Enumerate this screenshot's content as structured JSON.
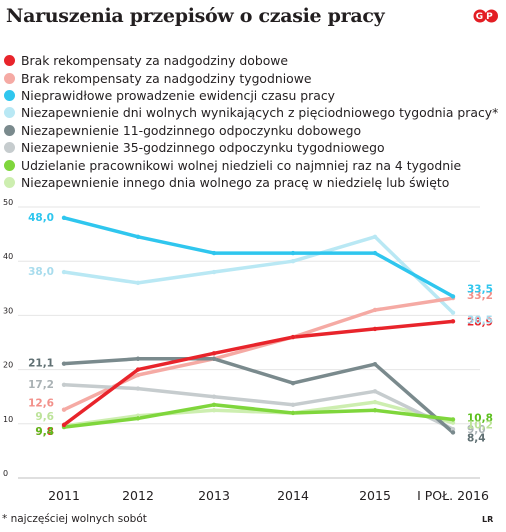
{
  "title": "Naruszenia przepisów o czasie pracy",
  "footnote": "* najczęściej wolnych sobót",
  "credit": "LR",
  "logo_text": "GP",
  "logo_color": "#e31e24",
  "chart_data": {
    "type": "line",
    "title": "Naruszenia przepisów o czasie pracy",
    "xlabel": "",
    "ylabel": "",
    "x": [
      "2011",
      "2012",
      "2013",
      "2014",
      "2015",
      "I POŁ. 2016"
    ],
    "yticks": [
      0,
      10,
      20,
      30,
      40,
      50
    ],
    "ylim": [
      0,
      50
    ],
    "grid": true,
    "legend_position": "top",
    "series": [
      {
        "name": "Brak rekompensaty za nadgodziny dobowe",
        "color": "#e8242b",
        "values": [
          9.8,
          20.0,
          23.0,
          26.0,
          27.5,
          28.9
        ],
        "labels": [
          "9,8",
          "28,9"
        ],
        "label_color": "#e8242b"
      },
      {
        "name": "Brak rekompensaty za nadgodziny tygodniowe",
        "color": "#f5aaa4",
        "values": [
          12.6,
          19.0,
          22.0,
          26.0,
          31.0,
          33.2
        ],
        "labels": [
          "12,6",
          "33,2"
        ],
        "label_color": "#f2908a"
      },
      {
        "name": "Nieprawidłowe prowadzenie ewidencji czasu pracy",
        "color": "#2fc6ee",
        "values": [
          48.0,
          44.5,
          41.5,
          41.5,
          41.5,
          33.5
        ],
        "labels": [
          "48,0",
          "33,5"
        ],
        "label_color": "#2fc6ee"
      },
      {
        "name": "Niezapewnienie dni wolnych wynikających z pięciodniowego tygodnia pracy*",
        "color": "#b9e8f4",
        "values": [
          38.0,
          36.0,
          38.0,
          40.0,
          44.5,
          30.5
        ],
        "labels": [
          "38,0",
          "30,5"
        ],
        "label_color": "#a8dced"
      },
      {
        "name": "Niezapewnienie 11-godzinnego odpoczynku dobowego",
        "color": "#7a8a8d",
        "values": [
          21.1,
          22.0,
          22.0,
          17.5,
          21.0,
          8.4
        ],
        "labels": [
          "21,1",
          "8,4"
        ],
        "label_color": "#5f6f72"
      },
      {
        "name": "Niezapewnienie 35-godzinnego odpoczynku tygodniowego",
        "color": "#c6ccce",
        "values": [
          17.2,
          16.5,
          15.0,
          13.5,
          16.0,
          9.0
        ],
        "labels": [
          "17,2",
          "9,0"
        ],
        "label_color": "#aab2b5"
      },
      {
        "name": "Udzielanie pracownikowi wolnej niedzieli co najmniej raz na 4 tygodnie",
        "color": "#7fd63c",
        "values": [
          9.4,
          11.0,
          13.5,
          12.0,
          12.5,
          10.8
        ],
        "labels": [
          "9,4",
          "10,8"
        ],
        "label_color": "#5cbf1e"
      },
      {
        "name": "Niezapewnienie innego dnia wolnego za pracę w niedzielę lub święto",
        "color": "#cdeeb0",
        "values": [
          9.6,
          11.5,
          12.5,
          12.0,
          14.0,
          10.2
        ],
        "labels": [
          "9,6",
          "10,2"
        ],
        "label_color": "#bde39a"
      }
    ]
  }
}
